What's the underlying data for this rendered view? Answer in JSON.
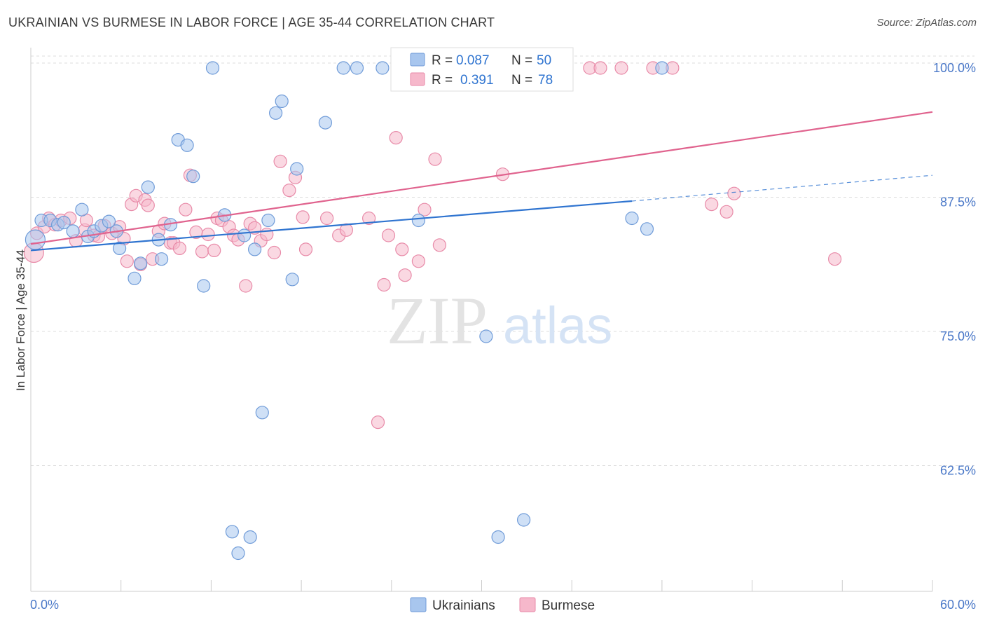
{
  "header": {
    "title": "UKRAINIAN VS BURMESE IN LABOR FORCE | AGE 35-44 CORRELATION CHART",
    "source": "Source: ZipAtlas.com"
  },
  "watermark": {
    "zip": "ZIP",
    "atlas": "atlas"
  },
  "legend": {
    "rows": [
      {
        "r_label": "R =",
        "r_value": "0.087",
        "n_label": "N =",
        "n_value": "50"
      },
      {
        "r_label": "R =",
        "r_value": "0.391",
        "n_label": "N =",
        "n_value": "78"
      }
    ]
  },
  "bottom_legend": [
    "Ukrainians",
    "Burmese"
  ],
  "colors": {
    "ukrainians_fill": "#a8c6ee",
    "ukrainians_stroke": "#6f9bd8",
    "ukrainians_line": "#2f74d0",
    "burmese_fill": "#f6b8cb",
    "burmese_stroke": "#e88aa8",
    "burmese_line": "#e0638e",
    "tick_label": "#4a78c8",
    "grid": "#dddddd"
  },
  "chart_data": {
    "type": "scatter",
    "title": "UKRAINIAN VS BURMESE IN LABOR FORCE | AGE 35-44 CORRELATION CHART",
    "xlabel": "",
    "ylabel": "In Labor Force | Age 35-44",
    "xlim": [
      0,
      60
    ],
    "ylim": [
      50,
      101
    ],
    "x_tick_labels": [
      "0.0%",
      "60.0%"
    ],
    "y_ticks": [
      62.5,
      75.0,
      87.5,
      100.0
    ],
    "y_tick_labels": [
      "62.5%",
      "75.0%",
      "87.5%",
      "100.0%"
    ],
    "grid": true,
    "legend_position": "top-center",
    "series": [
      {
        "name": "Ukrainians",
        "R": 0.087,
        "N": 50,
        "trend": {
          "x": [
            0,
            40
          ],
          "y": [
            83.0,
            87.6
          ],
          "dashed_extension": {
            "x": [
              40,
              60
            ],
            "y": [
              87.6,
              90.0
            ]
          }
        },
        "points": [
          [
            0.3,
            84.0
          ],
          [
            0.7,
            85.8
          ],
          [
            1.3,
            85.8
          ],
          [
            1.8,
            85.4
          ],
          [
            2.2,
            85.6
          ],
          [
            2.8,
            84.8
          ],
          [
            3.4,
            86.8
          ],
          [
            3.8,
            84.3
          ],
          [
            4.2,
            84.8
          ],
          [
            4.7,
            85.3
          ],
          [
            5.2,
            85.7
          ],
          [
            5.7,
            84.8
          ],
          [
            5.9,
            83.2
          ],
          [
            6.9,
            80.4
          ],
          [
            7.3,
            81.8
          ],
          [
            7.8,
            88.9
          ],
          [
            8.5,
            84.0
          ],
          [
            8.7,
            82.2
          ],
          [
            9.3,
            85.4
          ],
          [
            9.8,
            93.3
          ],
          [
            10.4,
            92.8
          ],
          [
            10.8,
            89.9
          ],
          [
            11.5,
            79.7
          ],
          [
            12.1,
            100.0
          ],
          [
            12.9,
            86.3
          ],
          [
            13.4,
            56.8
          ],
          [
            13.8,
            54.8
          ],
          [
            14.2,
            84.4
          ],
          [
            14.6,
            56.3
          ],
          [
            14.9,
            83.1
          ],
          [
            15.4,
            67.9
          ],
          [
            15.8,
            85.8
          ],
          [
            16.3,
            95.8
          ],
          [
            16.7,
            96.9
          ],
          [
            17.4,
            80.3
          ],
          [
            17.7,
            90.6
          ],
          [
            19.6,
            94.9
          ],
          [
            20.8,
            100.0
          ],
          [
            21.7,
            100.0
          ],
          [
            23.4,
            100.0
          ],
          [
            25.0,
            100.0
          ],
          [
            25.8,
            85.8
          ],
          [
            30.3,
            75.0
          ],
          [
            31.1,
            56.3
          ],
          [
            32.0,
            100.0
          ],
          [
            32.8,
            57.9
          ],
          [
            35.5,
            100.0
          ],
          [
            40.0,
            86.0
          ],
          [
            41.0,
            85.0
          ],
          [
            42.0,
            100.0
          ]
        ]
      },
      {
        "name": "Burmese",
        "R": 0.391,
        "N": 78,
        "trend": {
          "x": [
            0,
            60
          ],
          "y": [
            83.6,
            95.9
          ]
        },
        "points": [
          [
            0.2,
            82.8
          ],
          [
            0.4,
            84.6
          ],
          [
            0.9,
            85.2
          ],
          [
            1.2,
            86.0
          ],
          [
            1.6,
            85.4
          ],
          [
            2.0,
            85.8
          ],
          [
            2.6,
            86.0
          ],
          [
            3.0,
            83.9
          ],
          [
            3.6,
            84.9
          ],
          [
            3.7,
            85.8
          ],
          [
            4.2,
            84.4
          ],
          [
            4.5,
            84.3
          ],
          [
            4.9,
            85.3
          ],
          [
            5.4,
            84.6
          ],
          [
            5.9,
            85.2
          ],
          [
            6.2,
            84.1
          ],
          [
            6.4,
            82.0
          ],
          [
            6.7,
            87.3
          ],
          [
            7.0,
            88.1
          ],
          [
            7.3,
            81.7
          ],
          [
            7.6,
            87.7
          ],
          [
            7.8,
            87.2
          ],
          [
            8.1,
            82.2
          ],
          [
            8.5,
            84.8
          ],
          [
            8.9,
            85.5
          ],
          [
            9.3,
            83.7
          ],
          [
            9.5,
            83.7
          ],
          [
            9.9,
            83.2
          ],
          [
            10.3,
            86.8
          ],
          [
            10.6,
            90.0
          ],
          [
            11.0,
            84.7
          ],
          [
            11.4,
            82.9
          ],
          [
            11.8,
            84.5
          ],
          [
            12.2,
            83.0
          ],
          [
            12.4,
            86.0
          ],
          [
            12.7,
            85.8
          ],
          [
            13.2,
            85.2
          ],
          [
            13.5,
            84.4
          ],
          [
            13.8,
            84.0
          ],
          [
            14.3,
            79.7
          ],
          [
            14.6,
            85.5
          ],
          [
            14.9,
            85.1
          ],
          [
            15.3,
            83.9
          ],
          [
            15.7,
            84.5
          ],
          [
            16.2,
            82.8
          ],
          [
            16.6,
            91.3
          ],
          [
            17.2,
            88.6
          ],
          [
            17.6,
            89.8
          ],
          [
            18.1,
            86.1
          ],
          [
            18.3,
            83.1
          ],
          [
            19.7,
            86.0
          ],
          [
            20.5,
            84.4
          ],
          [
            21.0,
            84.9
          ],
          [
            22.5,
            86.0
          ],
          [
            23.1,
            67.0
          ],
          [
            23.5,
            79.8
          ],
          [
            23.8,
            84.4
          ],
          [
            24.3,
            93.5
          ],
          [
            24.7,
            83.1
          ],
          [
            24.9,
            80.7
          ],
          [
            25.3,
            100.0
          ],
          [
            25.8,
            82.0
          ],
          [
            26.2,
            86.8
          ],
          [
            26.9,
            91.5
          ],
          [
            27.2,
            83.5
          ],
          [
            30.3,
            100.0
          ],
          [
            31.4,
            90.1
          ],
          [
            34.3,
            100.0
          ],
          [
            35.3,
            100.0
          ],
          [
            37.2,
            100.0
          ],
          [
            37.9,
            100.0
          ],
          [
            39.3,
            100.0
          ],
          [
            41.4,
            100.0
          ],
          [
            42.7,
            100.0
          ],
          [
            45.3,
            87.3
          ],
          [
            46.3,
            86.6
          ],
          [
            46.8,
            88.3
          ],
          [
            53.5,
            82.2
          ]
        ]
      }
    ]
  }
}
